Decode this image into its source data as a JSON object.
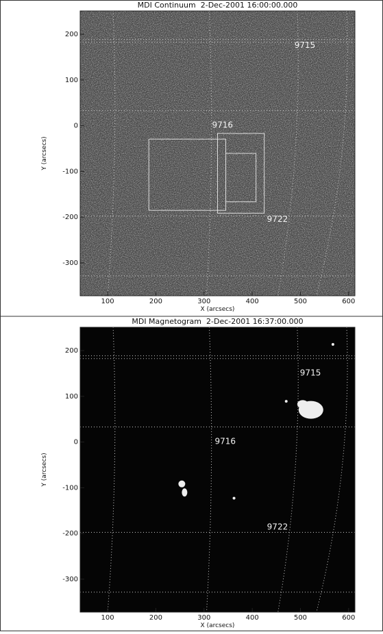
{
  "chart_data": [
    {
      "type": "image",
      "title": "MDI Continuum  2-Dec-2001 16:00:00.000",
      "xlabel": "X (arcsecs)",
      "ylabel": "Y (arcsecs)",
      "xlim": [
        43,
        613
      ],
      "ylim": [
        -372,
        251
      ],
      "xticks": [
        100,
        200,
        300,
        400,
        500,
        600
      ],
      "yticks": [
        200,
        100,
        0,
        -100,
        -200,
        -300
      ],
      "annotations": [
        "9715",
        "9716",
        "9722"
      ]
    },
    {
      "type": "image",
      "title": "MDI Magnetogram  2-Dec-2001 16:37:00.000",
      "xlabel": "X (arcsecs)",
      "ylabel": "Y (arcsecs)",
      "xlim": [
        43,
        613
      ],
      "ylim": [
        -372,
        251
      ],
      "xticks": [
        100,
        200,
        300,
        400,
        500,
        600
      ],
      "yticks": [
        200,
        100,
        0,
        -100,
        -200,
        -300
      ],
      "annotations": [
        "9715",
        "9716",
        "9722"
      ]
    }
  ]
}
